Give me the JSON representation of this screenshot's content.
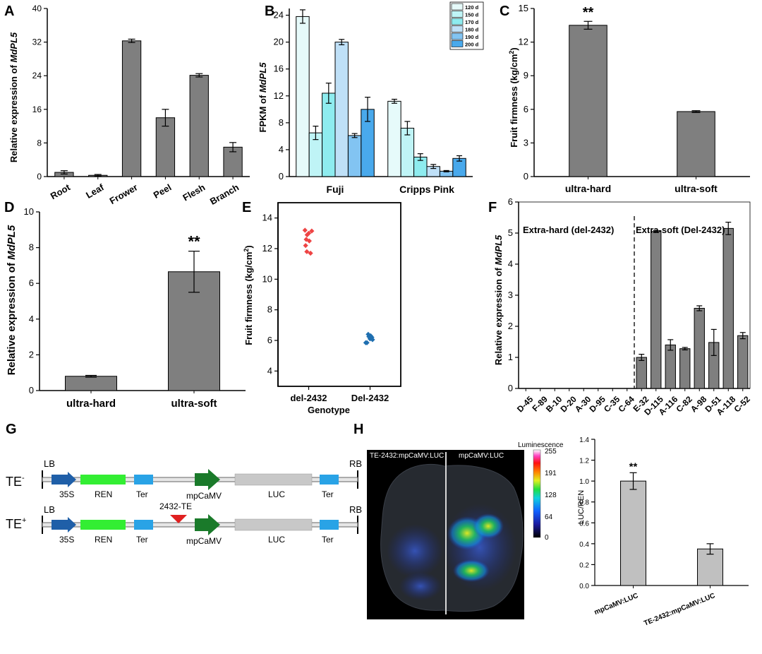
{
  "figure": {
    "panels": {
      "A": {
        "letter": "A",
        "ylabel_prefix": "Relative expression of ",
        "ylabel_gene": "MdPL5"
      },
      "B": {
        "letter": "B",
        "ylabel_prefix": "FPKM of ",
        "ylabel_gene": "MdPL5"
      },
      "C": {
        "letter": "C",
        "ylabel": "Fruit firmness (kg/cm",
        "ylabel_sup": "2",
        "ylabel_end": ")",
        "sig": "**"
      },
      "D": {
        "letter": "D",
        "ylabel_prefix": "Relative expression of ",
        "ylabel_gene": "MdPL5",
        "sig": "**"
      },
      "E": {
        "letter": "E",
        "ylabel": "Fruit firmness (kg/cm",
        "ylabel_sup": "2",
        "ylabel_end": ")",
        "xlabel": "Genotype"
      },
      "F": {
        "letter": "F",
        "ylabel_prefix": "Relative expression of ",
        "ylabel_gene": "MdPL5",
        "group1": "Extra-hard (del-2432)",
        "group2": "Extra-soft (Del-2432)"
      },
      "G": {
        "letter": "G"
      },
      "H": {
        "letter": "H",
        "ylabel": "LUC/REN",
        "sig": "**"
      }
    }
  },
  "construct": {
    "te_minus": "TE",
    "te_minus_sup": "-",
    "te_plus": "TE",
    "te_plus_sup": "+",
    "lb": "LB",
    "rb": "RB",
    "p35s": "35S",
    "ren": "REN",
    "ter": "Ter",
    "mpcamv": "mpCaMV",
    "luc": "LUC",
    "insert": "2432-TE"
  },
  "leaf": {
    "left_label": "TE-2432:mpCaMV:LUC",
    "right_label": "mpCaMV:LUC",
    "scale_title": "Luminescence",
    "scale_ticks": [
      "255",
      "191",
      "128",
      "64",
      "0"
    ]
  },
  "colors": {
    "bar_gray": "#7f7f7f",
    "bar_light": "#c0c0c0",
    "ren": "#33ee33",
    "mpcamv": "#1a7a2a",
    "p35s": "#1f5fa8",
    "ter": "#29a3e6",
    "luc": "#c8c8c8",
    "te_marker": "#e02020",
    "scatter_hard": "#ee4444",
    "scatter_soft": "#1f6fb0"
  },
  "chart_data": [
    {
      "panel": "A",
      "type": "bar",
      "categories": [
        "Root",
        "Leaf",
        "Frower",
        "Peel",
        "Flesh",
        "Branch"
      ],
      "values": [
        1.0,
        0.3,
        32.3,
        14.0,
        24.1,
        7.0
      ],
      "errors": [
        0.4,
        0.2,
        0.4,
        2.0,
        0.4,
        1.1
      ],
      "ylabel": "Relative expression of MdPL5",
      "ylim": [
        0,
        40
      ],
      "yticks": [
        "0",
        "8",
        "16",
        "24",
        "32",
        "40"
      ]
    },
    {
      "panel": "B",
      "type": "bar",
      "categories": [
        "Fuji",
        "Cripps Pink"
      ],
      "series": [
        {
          "name": "120 d",
          "values": [
            23.8,
            11.2
          ],
          "errors": [
            1.0,
            0.3
          ],
          "color": "#e6fafa"
        },
        {
          "name": "150 d",
          "values": [
            6.5,
            7.2
          ],
          "errors": [
            1.0,
            1.0
          ],
          "color": "#bff4f6"
        },
        {
          "name": "170 d",
          "values": [
            12.4,
            2.9
          ],
          "errors": [
            1.5,
            0.5
          ],
          "color": "#8eecef"
        },
        {
          "name": "180 d",
          "values": [
            20.0,
            1.5
          ],
          "errors": [
            0.4,
            0.3
          ],
          "color": "#bfe0f7"
        },
        {
          "name": "190 d",
          "values": [
            6.1,
            0.8
          ],
          "errors": [
            0.3,
            0.1
          ],
          "color": "#82c4f2"
        },
        {
          "name": "200 d",
          "values": [
            10.0,
            2.7
          ],
          "errors": [
            1.8,
            0.4
          ],
          "color": "#49a9ec"
        }
      ],
      "ylabel": "FPKM of MdPL5",
      "ylim": [
        0,
        25
      ],
      "yticks": [
        "0",
        "4",
        "8",
        "12",
        "16",
        "20",
        "24"
      ]
    },
    {
      "panel": "C",
      "type": "bar",
      "categories": [
        "ultra-hard",
        "ultra-soft"
      ],
      "values": [
        13.5,
        5.8
      ],
      "errors": [
        0.35,
        0.08
      ],
      "ylabel": "Fruit firmness (kg/cm2)",
      "ylim": [
        0,
        15
      ],
      "yticks": [
        "0",
        "3",
        "6",
        "9",
        "12",
        "15"
      ]
    },
    {
      "panel": "D",
      "type": "bar",
      "categories": [
        "ultra-hard",
        "ultra-soft"
      ],
      "values": [
        0.8,
        6.65
      ],
      "errors": [
        0.05,
        1.15
      ],
      "ylabel": "Relative expression of MdPL5",
      "ylim": [
        0,
        10
      ],
      "yticks": [
        "0",
        "2",
        "4",
        "6",
        "8",
        "10"
      ]
    },
    {
      "panel": "E",
      "type": "scatter",
      "categories": [
        "del-2432",
        "Del-2432"
      ],
      "series": [
        {
          "category": "del-2432",
          "points": [
            [
              -0.12,
              13.2
            ],
            [
              0.0,
              13.0
            ],
            [
              0.1,
              13.15
            ],
            [
              -0.05,
              12.9
            ],
            [
              -0.08,
              12.6
            ],
            [
              0.02,
              12.5
            ],
            [
              -0.1,
              12.2
            ],
            [
              -0.06,
              11.8
            ],
            [
              0.06,
              11.7
            ]
          ]
        },
        {
          "category": "Del-2432",
          "points": [
            [
              -0.06,
              6.4
            ],
            [
              0.02,
              6.3
            ],
            [
              0.06,
              6.2
            ],
            [
              0.0,
              6.1
            ],
            [
              -0.04,
              6.25
            ],
            [
              -0.1,
              5.85
            ],
            [
              -0.14,
              5.85
            ],
            [
              0.08,
              6.05
            ]
          ]
        }
      ],
      "ylabel": "Fruit firmness (kg/cm2)",
      "xlabel": "Genotype",
      "ylim": [
        3,
        15
      ],
      "yticks": [
        "4",
        "6",
        "8",
        "10",
        "12",
        "14"
      ]
    },
    {
      "panel": "F",
      "type": "bar",
      "categories": [
        "D-45",
        "F-89",
        "B-10",
        "D-20",
        "A-30",
        "D-95",
        "C-35",
        "C-64",
        "E-32",
        "D-115",
        "A-116",
        "C-82",
        "A-98",
        "D-51",
        "A-118",
        "C-52"
      ],
      "values": [
        0,
        0,
        0,
        0,
        0,
        0,
        0,
        0,
        1.0,
        5.05,
        1.4,
        1.28,
        2.58,
        1.48,
        5.15,
        1.7
      ],
      "errors": [
        0,
        0,
        0,
        0,
        0,
        0,
        0,
        0,
        0.1,
        0.03,
        0.17,
        0.04,
        0.08,
        0.42,
        0.2,
        0.1
      ],
      "ylabel": "Relative expression of MdPL5",
      "ylim": [
        0,
        6
      ],
      "yticks": [
        "0",
        "1",
        "2",
        "3",
        "4",
        "5",
        "6"
      ]
    },
    {
      "panel": "H",
      "type": "bar",
      "categories": [
        "mpCaMV:LUC",
        "TE-2432:mpCaMV:LUC"
      ],
      "values": [
        1.0,
        0.35
      ],
      "errors": [
        0.08,
        0.05
      ],
      "ylabel": "LUC/REN",
      "ylim": [
        0,
        1.4
      ],
      "yticks": [
        "0.0",
        "0.2",
        "0.4",
        "0.6",
        "0.8",
        "1.0",
        "1.2",
        "1.4"
      ]
    }
  ]
}
